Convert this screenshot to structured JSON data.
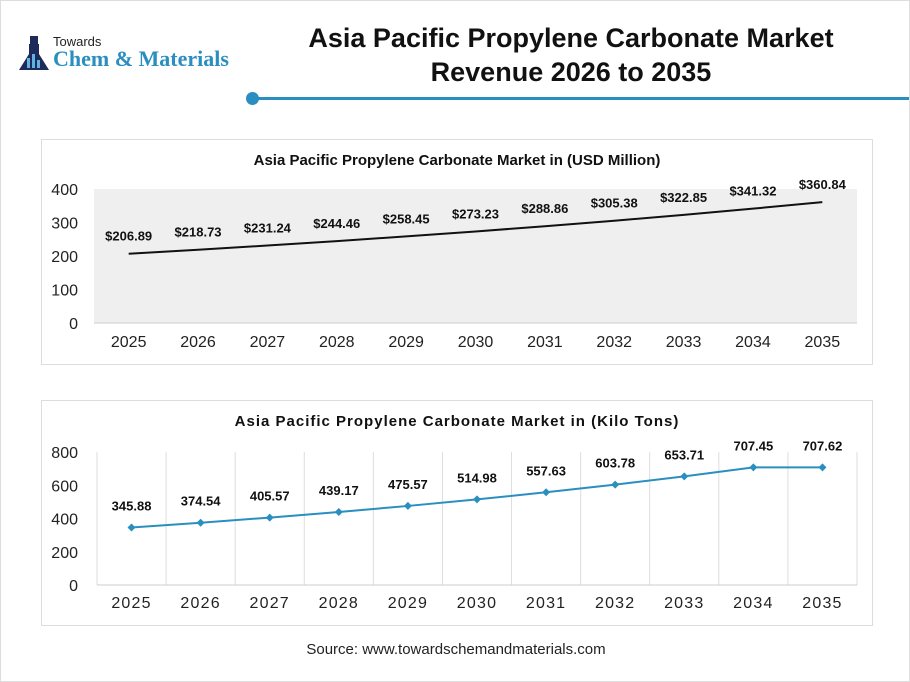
{
  "logo": {
    "line1": "Towards",
    "line2": "Chem & Materials"
  },
  "header": {
    "title_line1": "Asia Pacific Propylene Carbonate Market",
    "title_line2": "Revenue 2026 to 2035"
  },
  "source": "Source: www.towardschemandmaterials.com",
  "colors": {
    "accent": "#2a8fc0",
    "line1": "#111111",
    "line2": "#2a8fc0"
  },
  "chart_data": [
    {
      "type": "line",
      "title": "Asia Pacific Propylene Carbonate Market in (USD Million)",
      "categories": [
        "2025",
        "2026",
        "2027",
        "2028",
        "2029",
        "2030",
        "2031",
        "2032",
        "2033",
        "2034",
        "2035"
      ],
      "values": [
        206.89,
        218.73,
        231.24,
        244.46,
        258.45,
        273.23,
        288.86,
        305.38,
        322.85,
        341.32,
        360.84
      ],
      "labels": [
        "$206.89",
        "$218.73",
        "$231.24",
        "$244.46",
        "$258.45",
        "$273.23",
        "$288.86",
        "$305.38",
        "$322.85",
        "$341.32",
        "$360.84"
      ],
      "ylim": [
        0,
        400
      ],
      "yticks": [
        "0",
        "100",
        "200",
        "300",
        "400"
      ],
      "grid": false,
      "markers": false
    },
    {
      "type": "line",
      "title": "Asia Pacific Propylene Carbonate Market in (Kilo Tons)",
      "categories": [
        "2025",
        "2026",
        "2027",
        "2028",
        "2029",
        "2030",
        "2031",
        "2032",
        "2033",
        "2034",
        "2035"
      ],
      "values": [
        345.88,
        374.54,
        405.57,
        439.17,
        475.57,
        514.98,
        557.63,
        603.78,
        653.71,
        707.45,
        707.62
      ],
      "labels": [
        "345.88",
        "374.54",
        "405.57",
        "439.17",
        "475.57",
        "514.98",
        "557.63",
        "603.78",
        "653.71",
        "707.45",
        "707.62"
      ],
      "ylim": [
        0,
        800
      ],
      "yticks": [
        "0",
        "200",
        "400",
        "600",
        "800"
      ],
      "grid": "vertical",
      "markers": "diamond"
    }
  ]
}
